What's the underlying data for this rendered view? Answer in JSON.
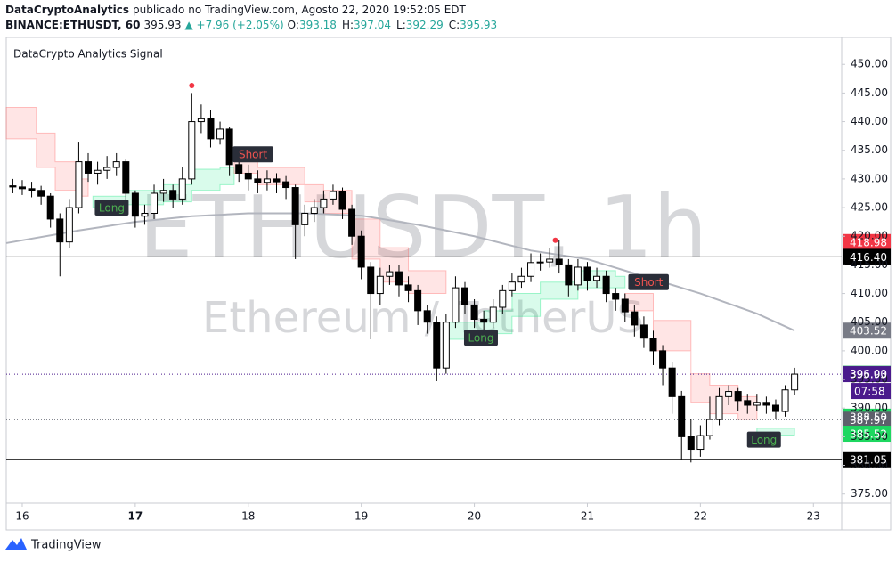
{
  "header": {
    "author": "DataCryptoAnalytics",
    "published": "publicado no TradingView.com, Agosto 22, 2020 19:52:05 EDT",
    "symbol": "BINANCE:ETHUSDT, 60",
    "last": "395.93",
    "change": "▲ +7.96 (+2.05%)",
    "ohlc": [
      {
        "label": "O:",
        "value": "393.18"
      },
      {
        "label": "H:",
        "value": "397.04"
      },
      {
        "label": "L:",
        "value": "392.29"
      },
      {
        "label": "C:",
        "value": "395.93"
      }
    ]
  },
  "footer": {
    "brand": "TradingView"
  },
  "chart_data": {
    "type": "candlestick",
    "title": "DataCrypto Analytics Signal",
    "watermark": "ETHUSDT, 1h",
    "watermark_sub": "Ethereum / TetherUS",
    "grid": false,
    "xlim": [
      -3.4,
      174
    ],
    "ylim": [
      373.4,
      454.7
    ],
    "xticks": [
      {
        "value": 0,
        "label": "16"
      },
      {
        "value": 24,
        "label": "17",
        "bold": true
      },
      {
        "value": 48,
        "label": "18"
      },
      {
        "value": 72,
        "label": "19"
      },
      {
        "value": 96,
        "label": "20"
      },
      {
        "value": 120,
        "label": "21"
      },
      {
        "value": 144,
        "label": "22"
      },
      {
        "value": 168,
        "label": "23"
      }
    ],
    "yticks": [
      {
        "value": 375,
        "label": "375.00"
      },
      {
        "value": 380,
        "label": "380.00"
      },
      {
        "value": 385,
        "label": "385.00"
      },
      {
        "value": 390,
        "label": "390.00"
      },
      {
        "value": 395,
        "label": "395.00"
      },
      {
        "value": 400,
        "label": "400.00"
      },
      {
        "value": 405,
        "label": "405.00"
      },
      {
        "value": 410,
        "label": "410.00"
      },
      {
        "value": 415,
        "label": "415.00"
      },
      {
        "value": 420,
        "label": "420.00"
      },
      {
        "value": 425,
        "label": "425.00"
      },
      {
        "value": 430,
        "label": "430.00"
      },
      {
        "value": 435,
        "label": "435.00"
      },
      {
        "value": 440,
        "label": "440.00"
      },
      {
        "value": 445,
        "label": "445.00"
      },
      {
        "value": 450,
        "label": "450.00"
      }
    ],
    "up_color": "#ffffff",
    "down_color": "#000000",
    "wick_color": "#000000",
    "candles": {
      "x": [
        -2,
        0,
        2,
        4,
        6,
        8,
        10,
        12,
        14,
        16,
        18,
        20,
        22,
        24,
        26,
        28,
        30,
        32,
        34,
        36,
        38,
        40,
        42,
        44,
        46,
        48,
        50,
        52,
        54,
        56,
        58,
        60,
        62,
        64,
        66,
        68,
        70,
        72,
        74,
        76,
        78,
        80,
        82,
        84,
        86,
        88,
        90,
        92,
        94,
        96,
        98,
        100,
        102,
        104,
        106,
        108,
        110,
        112,
        114,
        116,
        118,
        120,
        122,
        124,
        126,
        128,
        130,
        132,
        134,
        136,
        138,
        140,
        142,
        144,
        146,
        148,
        150,
        152,
        154,
        156,
        158,
        160,
        162,
        164
      ],
      "ohlc": [
        [
          428.8,
          430,
          427.5,
          428.6
        ],
        [
          428.6,
          429.8,
          427.2,
          428.3
        ],
        [
          428.3,
          429.5,
          426.8,
          428
        ],
        [
          428,
          428.8,
          425.5,
          427
        ],
        [
          427,
          427.5,
          421.5,
          423
        ],
        [
          423,
          424,
          413,
          419
        ],
        [
          419,
          426.5,
          418,
          425
        ],
        [
          425,
          436.5,
          424,
          433
        ],
        [
          433,
          434.5,
          429.5,
          431
        ],
        [
          431,
          433,
          429,
          431.5
        ],
        [
          431.5,
          434,
          430,
          432
        ],
        [
          432,
          434.5,
          430.5,
          433
        ],
        [
          433,
          433.5,
          426,
          427.5
        ],
        [
          427.5,
          428,
          421.5,
          423.5
        ],
        [
          423.5,
          425.5,
          422,
          424
        ],
        [
          424,
          429,
          423,
          427.5
        ],
        [
          427.5,
          430,
          426,
          428
        ],
        [
          428,
          429,
          425,
          426.5
        ],
        [
          426.5,
          432,
          425.5,
          430
        ],
        [
          430,
          445,
          429,
          440
        ],
        [
          440,
          443,
          438,
          440.5
        ],
        [
          440.5,
          442,
          435.5,
          437
        ],
        [
          437,
          440,
          436,
          438.7
        ],
        [
          438.7,
          439,
          430.5,
          432.5
        ],
        [
          432.5,
          434,
          429.5,
          431
        ],
        [
          431,
          432.5,
          428,
          430
        ],
        [
          430,
          431.5,
          427.5,
          429.4
        ],
        [
          429.4,
          431.5,
          428,
          430
        ],
        [
          430,
          431,
          427.5,
          429.5
        ],
        [
          429.5,
          430.5,
          426.5,
          428.5
        ],
        [
          428.5,
          429,
          416,
          422
        ],
        [
          422,
          425.5,
          420,
          424
        ],
        [
          424,
          426.5,
          422.5,
          425
        ],
        [
          425,
          428,
          424,
          426.5
        ],
        [
          426.5,
          429,
          425.5,
          427.8
        ],
        [
          427.8,
          428.5,
          423,
          424.7
        ],
        [
          424.7,
          425.5,
          418.5,
          420
        ],
        [
          420,
          421,
          412.5,
          414.6
        ],
        [
          414.6,
          415.5,
          402,
          410
        ],
        [
          410,
          414.5,
          408,
          413
        ],
        [
          413,
          415,
          411.5,
          413.8
        ],
        [
          413.8,
          415,
          409.5,
          411.5
        ],
        [
          411.5,
          413,
          408.5,
          410.5
        ],
        [
          410.5,
          411.5,
          404.5,
          407
        ],
        [
          407,
          408,
          403,
          405
        ],
        [
          405,
          406,
          394.7,
          397
        ],
        [
          397,
          406.5,
          396,
          405
        ],
        [
          405,
          413,
          404,
          411
        ],
        [
          411,
          412,
          406.5,
          408
        ],
        [
          408,
          409,
          404,
          405.5
        ],
        [
          405.5,
          407,
          403.5,
          405
        ],
        [
          405,
          409,
          404,
          407.6
        ],
        [
          407.6,
          411.5,
          406.5,
          410.5
        ],
        [
          410.5,
          413.5,
          409.5,
          412
        ],
        [
          412,
          414.5,
          411,
          413
        ],
        [
          413,
          417,
          412,
          415.4
        ],
        [
          415.4,
          417,
          414,
          415.5
        ],
        [
          415.5,
          418,
          414.5,
          416
        ],
        [
          416,
          419.3,
          413.5,
          415
        ],
        [
          415,
          416,
          409.5,
          411.5
        ],
        [
          411.5,
          416,
          410.5,
          414.6
        ],
        [
          414.6,
          415.5,
          410.5,
          412.3
        ],
        [
          412.3,
          414.5,
          411,
          413
        ],
        [
          413,
          414,
          408.5,
          410
        ],
        [
          410,
          411,
          407,
          409
        ],
        [
          409,
          410,
          405,
          406.8
        ],
        [
          406.8,
          408,
          402.5,
          404.5
        ],
        [
          404.5,
          406,
          400.5,
          402.2
        ],
        [
          402.2,
          403.5,
          397.5,
          400
        ],
        [
          400,
          401,
          394,
          397
        ],
        [
          397,
          398,
          389,
          392
        ],
        [
          392,
          393,
          381,
          385
        ],
        [
          385,
          388,
          380.5,
          382.8
        ],
        [
          382.8,
          387,
          381.5,
          385.2
        ],
        [
          385.2,
          392,
          384.5,
          388
        ],
        [
          388,
          393.5,
          387,
          392
        ],
        [
          392,
          394,
          390.5,
          392.9
        ],
        [
          392.9,
          393.5,
          389.5,
          391.3
        ],
        [
          391.3,
          392.5,
          389,
          390.5
        ],
        [
          390.5,
          392.5,
          389.5,
          391
        ],
        [
          391,
          392,
          389,
          390.5
        ],
        [
          390.5,
          391.5,
          388,
          389.4
        ],
        [
          389.4,
          394,
          388.5,
          393.18
        ],
        [
          393.18,
          397.04,
          392.29,
          395.93
        ]
      ]
    },
    "moving_average": {
      "color": "#b2b5be",
      "x": [
        -3.4,
        12,
        24,
        36,
        48,
        60,
        72,
        84,
        96,
        108,
        120,
        132,
        144,
        156,
        164
      ],
      "values": [
        418.8,
        421,
        422.5,
        423.5,
        424,
        424,
        423.6,
        422,
        420,
        417.5,
        416,
        413,
        410,
        406.5,
        403.52
      ]
    },
    "bands": [
      {
        "color": "#ff5252",
        "x": [
          -3.4,
          3,
          7,
          12,
          14
        ],
        "upper": [
          442.5,
          438,
          433,
          430,
          430
        ],
        "lower": [
          437,
          432,
          428,
          427,
          427
        ]
      },
      {
        "color": "#00e676",
        "x": [
          15,
          22,
          30,
          36,
          42,
          45
        ],
        "upper": [
          427,
          428,
          429,
          431.7,
          432,
          432
        ],
        "lower": [
          425,
          425.5,
          426,
          428,
          429,
          429
        ]
      },
      {
        "color": "#ff5252",
        "x": [
          45,
          50,
          60,
          64,
          70,
          76,
          82,
          90
        ],
        "upper": [
          434.8,
          432,
          429,
          428,
          423,
          418,
          414,
          414
        ],
        "lower": [
          431,
          429,
          426,
          424,
          416,
          412,
          410,
          410
        ]
      },
      {
        "color": "#00e676",
        "x": [
          90,
          98,
          104,
          110,
          118,
          126,
          128
        ],
        "upper": [
          405,
          407,
          410,
          412,
          414,
          413,
          413
        ],
        "lower": [
          402,
          403,
          406,
          409,
          411,
          411,
          411
        ]
      },
      {
        "color": "#ff5252",
        "x": [
          128,
          134,
          142,
          146,
          152,
          156
        ],
        "upper": [
          410,
          405.3,
          396,
          394,
          392,
          392
        ],
        "lower": [
          407,
          400,
          391,
          389,
          388,
          388
        ]
      },
      {
        "color": "#00e676",
        "x": [
          156,
          164
        ],
        "upper": [
          386.5,
          386.5
        ],
        "lower": [
          385.3,
          385.3
        ]
      }
    ],
    "signals": [
      {
        "label": "Long",
        "x": 19,
        "y": 425,
        "color": "#4caf50"
      },
      {
        "label": "Short",
        "x": 49,
        "y": 434.3,
        "color": "#ef5350"
      },
      {
        "label": "Long",
        "x": 97.4,
        "y": 402.3,
        "color": "#4caf50"
      },
      {
        "label": "Short",
        "x": 133,
        "y": 412,
        "color": "#ef5350"
      },
      {
        "label": "Long",
        "x": 157.5,
        "y": 384.5,
        "color": "#4caf50"
      }
    ],
    "markers": [
      {
        "x": 36,
        "y": 446.3,
        "color": "#f23645"
      },
      {
        "x": 113.2,
        "y": 419.3,
        "color": "#f23645"
      }
    ],
    "price_tags": [
      {
        "value": 418.98,
        "color": "#f23645"
      },
      {
        "value": 416.4,
        "label": "416.40",
        "color": "#000000",
        "line": "solid"
      },
      {
        "value": 403.52,
        "color": "#787b86"
      },
      {
        "value": 396,
        "label": "396.00",
        "color": "#22ab5c"
      },
      {
        "value": 395.93,
        "color": "#4a1a8c",
        "line": "dotted",
        "countdown": "07:58"
      },
      {
        "value": 388.5,
        "label": "388.50",
        "color": "#1ed760"
      },
      {
        "value": 387.97,
        "color": "#5d606b",
        "line": "dotted"
      },
      {
        "value": 385.52,
        "color": "#1ed760"
      },
      {
        "value": 381.05,
        "color": "#000000",
        "line": "solid"
      }
    ]
  }
}
